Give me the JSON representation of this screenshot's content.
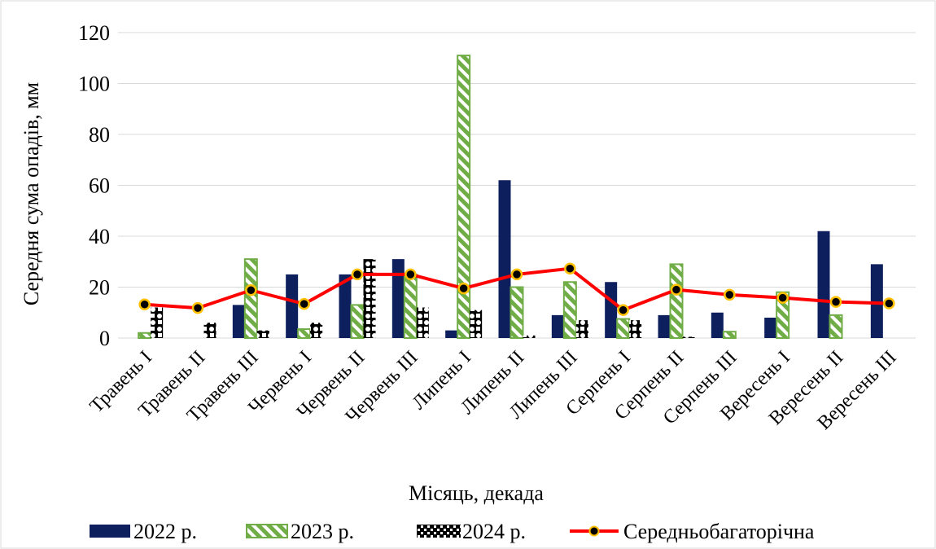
{
  "chart_data": {
    "type": "bar",
    "title": "",
    "xlabel": "Місяць, декада",
    "ylabel": "Середня сума опадів, мм",
    "ylim": [
      0,
      120
    ],
    "yticks": [
      0,
      20,
      40,
      60,
      80,
      100,
      120
    ],
    "grid": true,
    "legend_position": "bottom",
    "categories": [
      "Травень I",
      "Травень II",
      "Травень III",
      "Червень I",
      "Червень II",
      "Червень III",
      "Липень I",
      "Липень II",
      "Липень III",
      "Серпень I",
      "Серпень II",
      "Серпень III",
      "Вересень I",
      "Вересень II",
      "Вересень III"
    ],
    "series": [
      {
        "name": "2022 р.",
        "kind": "bar",
        "pattern": "solid",
        "color": "#0d1f5c",
        "values": [
          0,
          0,
          13,
          25,
          25,
          31,
          3,
          62,
          9,
          22,
          9,
          10,
          8,
          42,
          29
        ]
      },
      {
        "name": "2023 р.",
        "kind": "bar",
        "pattern": "diagonal-stripes",
        "color": "#70ad47",
        "values": [
          2,
          0,
          31,
          3.5,
          13,
          25,
          111,
          20,
          22,
          7.5,
          29,
          2.5,
          18,
          9,
          0
        ]
      },
      {
        "name": "2024 р.",
        "kind": "bar",
        "pattern": "checker-dots",
        "color": "#000000",
        "values": [
          12,
          6,
          3,
          6,
          31,
          12,
          11,
          1,
          7,
          7,
          0.5,
          0,
          0,
          0,
          0
        ]
      },
      {
        "name": "Середньобагаторічна",
        "kind": "line",
        "color": "#ff0000",
        "marker_color": "#000000",
        "marker_edge": "#ffc000",
        "values": [
          13.2,
          11.8,
          18.8,
          13.4,
          25,
          25,
          19.5,
          25,
          27.3,
          11,
          19,
          17,
          15.8,
          14.2,
          13.6
        ]
      }
    ]
  }
}
